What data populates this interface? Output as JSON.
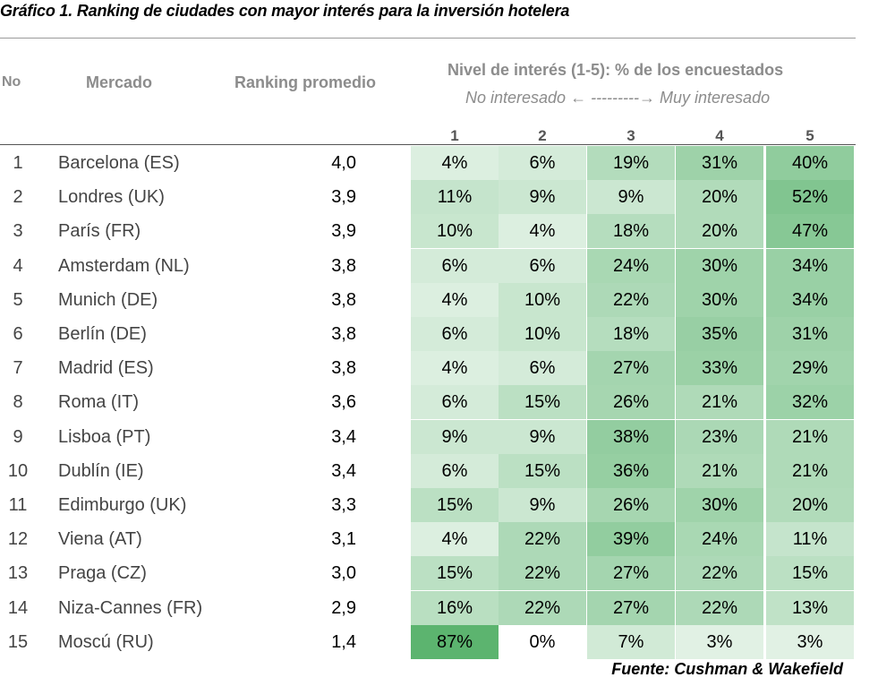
{
  "title": "Gráfico 1. Ranking de ciudades con mayor interés para la inversión hotelera",
  "source": "Fuente: Cushman & Wakefield",
  "headers": {
    "no": "No",
    "mercado": "Mercado",
    "ranking": "Ranking promedio",
    "nivel": "Nivel de interés (1-5): % de los encuestados",
    "scale": "No interesado ← ---------→ Muy interesado"
  },
  "colors": {
    "heat_low": "#ffffff",
    "heat_high": "#5cb46f"
  },
  "chart_data": {
    "type": "heatmap",
    "title": "Gráfico 1. Ranking de ciudades con mayor interés para la inversión hotelera",
    "columns": [
      "1",
      "2",
      "3",
      "4",
      "5"
    ],
    "rows": [
      {
        "no": "1",
        "mercado": "Barcelona (ES)",
        "ranking": "4,0",
        "values": [
          4,
          6,
          19,
          31,
          40
        ]
      },
      {
        "no": "2",
        "mercado": "Londres (UK)",
        "ranking": "3,9",
        "values": [
          11,
          9,
          9,
          20,
          52
        ]
      },
      {
        "no": "3",
        "mercado": "París (FR)",
        "ranking": "3,9",
        "values": [
          10,
          4,
          18,
          20,
          47
        ]
      },
      {
        "no": "4",
        "mercado": "Amsterdam (NL)",
        "ranking": "3,8",
        "values": [
          6,
          6,
          24,
          30,
          34
        ]
      },
      {
        "no": "5",
        "mercado": "Munich (DE)",
        "ranking": "3,8",
        "values": [
          4,
          10,
          22,
          30,
          34
        ]
      },
      {
        "no": "6",
        "mercado": "Berlín (DE)",
        "ranking": "3,8",
        "values": [
          6,
          10,
          18,
          35,
          31
        ]
      },
      {
        "no": "7",
        "mercado": "Madrid (ES)",
        "ranking": "3,8",
        "values": [
          4,
          6,
          27,
          33,
          29
        ]
      },
      {
        "no": "8",
        "mercado": "Roma (IT)",
        "ranking": "3,6",
        "values": [
          6,
          15,
          26,
          21,
          32
        ]
      },
      {
        "no": "9",
        "mercado": "Lisboa (PT)",
        "ranking": "3,4",
        "values": [
          9,
          9,
          38,
          23,
          21
        ]
      },
      {
        "no": "10",
        "mercado": "Dublín (IE)",
        "ranking": "3,4",
        "values": [
          6,
          15,
          36,
          21,
          21
        ]
      },
      {
        "no": "11",
        "mercado": "Edimburgo (UK)",
        "ranking": "3,3",
        "values": [
          15,
          9,
          26,
          30,
          20
        ]
      },
      {
        "no": "12",
        "mercado": "Viena (AT)",
        "ranking": "3,1",
        "values": [
          4,
          22,
          39,
          24,
          11
        ]
      },
      {
        "no": "13",
        "mercado": "Praga (CZ)",
        "ranking": "3,0",
        "values": [
          15,
          22,
          27,
          22,
          15
        ]
      },
      {
        "no": "14",
        "mercado": "Niza-Cannes (FR)",
        "ranking": "2,9",
        "values": [
          16,
          22,
          27,
          22,
          13
        ]
      },
      {
        "no": "15",
        "mercado": "Moscú (RU)",
        "ranking": "1,4",
        "values": [
          87,
          0,
          7,
          3,
          3
        ]
      }
    ]
  }
}
